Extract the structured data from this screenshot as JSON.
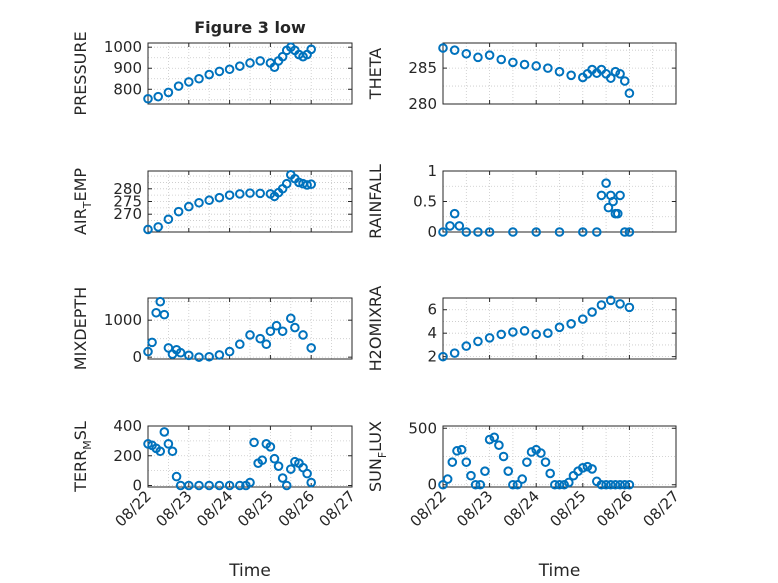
{
  "chart_data": [
    {
      "type": "scatter",
      "title": "Figure 3 low",
      "ylabel": "PRESSURE",
      "xlim": [
        "08/22",
        "08/27"
      ],
      "ylim": [
        730,
        1020
      ],
      "yticks": [
        800,
        900,
        1000
      ],
      "xticks": [
        "08/22",
        "08/23",
        "08/24",
        "08/25",
        "08/26",
        "08/27"
      ],
      "series": [
        {
          "x": [
            0,
            0.25,
            0.5,
            0.75,
            1,
            1.25,
            1.5,
            1.75,
            2,
            2.25,
            2.5,
            2.75,
            3,
            3.1,
            3.2,
            3.3,
            3.4,
            3.5,
            3.6,
            3.7,
            3.8,
            3.9,
            4.0
          ],
          "y": [
            755,
            765,
            785,
            815,
            835,
            850,
            870,
            885,
            895,
            910,
            925,
            935,
            925,
            905,
            935,
            955,
            985,
            1000,
            985,
            965,
            955,
            965,
            990
          ]
        }
      ]
    },
    {
      "type": "scatter",
      "ylabel": "THETA",
      "ylim": [
        280,
        288.5
      ],
      "yticks": [
        280,
        285
      ],
      "series": [
        {
          "x": [
            0,
            0.25,
            0.5,
            0.75,
            1,
            1.25,
            1.5,
            1.75,
            2,
            2.25,
            2.5,
            2.75,
            3,
            3.1,
            3.2,
            3.3,
            3.4,
            3.5,
            3.6,
            3.7,
            3.8,
            3.9,
            4.0
          ],
          "y": [
            287.8,
            287.5,
            287.0,
            286.5,
            286.8,
            286.2,
            285.8,
            285.5,
            285.3,
            285.0,
            284.5,
            284.0,
            283.7,
            284.2,
            284.8,
            284.3,
            284.8,
            284.2,
            283.6,
            284.5,
            284.2,
            283.2,
            281.5
          ]
        }
      ]
    },
    {
      "type": "scatter",
      "ylabel": "AIR_TEMP",
      "ylim": [
        263,
        287
      ],
      "yticks": [
        270,
        275,
        280
      ],
      "series": [
        {
          "x": [
            0,
            0.25,
            0.5,
            0.75,
            1,
            1.25,
            1.5,
            1.75,
            2,
            2.25,
            2.5,
            2.75,
            3,
            3.1,
            3.2,
            3.3,
            3.4,
            3.5,
            3.6,
            3.7,
            3.8,
            3.9,
            4.0
          ],
          "y": [
            264,
            265,
            268,
            271,
            273,
            274.5,
            275.5,
            276.5,
            277.5,
            278,
            278.3,
            278.2,
            278,
            277,
            278.5,
            280,
            282,
            285.5,
            284,
            282.5,
            282,
            281.5,
            281.8
          ]
        }
      ]
    },
    {
      "type": "scatter",
      "ylabel": "RAINFALL",
      "ylim": [
        0,
        1
      ],
      "yticks": [
        0,
        0.5,
        1
      ],
      "series": [
        {
          "x": [
            0,
            0.15,
            0.25,
            0.35,
            0.5,
            0.75,
            1,
            1.5,
            2,
            2.5,
            3,
            3.3,
            3.4,
            3.5,
            3.55,
            3.6,
            3.65,
            3.7,
            3.75,
            3.8,
            3.9,
            4.0
          ],
          "y": [
            0,
            0.1,
            0.3,
            0.1,
            0,
            0,
            0,
            0,
            0,
            0,
            0,
            0,
            0.6,
            0.8,
            0.4,
            0.6,
            0.5,
            0.3,
            0.3,
            0.6,
            0,
            0
          ]
        }
      ]
    },
    {
      "type": "scatter",
      "ylabel": "MIXDEPTH",
      "ylim": [
        -50,
        1600
      ],
      "yticks": [
        0,
        1000
      ],
      "series": [
        {
          "x": [
            0,
            0.1,
            0.2,
            0.3,
            0.4,
            0.5,
            0.6,
            0.7,
            0.8,
            1,
            1.25,
            1.5,
            1.75,
            2,
            2.25,
            2.5,
            2.75,
            2.9,
            3,
            3.15,
            3.3,
            3.5,
            3.6,
            3.8,
            4.0
          ],
          "y": [
            150,
            400,
            1200,
            1500,
            1150,
            250,
            80,
            200,
            120,
            50,
            0,
            10,
            60,
            150,
            350,
            600,
            500,
            350,
            700,
            850,
            700,
            1050,
            800,
            600,
            250
          ]
        }
      ]
    },
    {
      "type": "scatter",
      "ylabel": "H2OMIXRA",
      "ylim": [
        1.8,
        7
      ],
      "yticks": [
        2,
        4,
        6
      ],
      "series": [
        {
          "x": [
            0,
            0.25,
            0.5,
            0.75,
            1,
            1.25,
            1.5,
            1.75,
            2,
            2.25,
            2.5,
            2.75,
            3,
            3.2,
            3.4,
            3.6,
            3.8,
            4.0
          ],
          "y": [
            2,
            2.3,
            2.9,
            3.3,
            3.6,
            3.9,
            4.1,
            4.2,
            3.9,
            4.0,
            4.5,
            4.8,
            5.2,
            5.8,
            6.4,
            6.8,
            6.5,
            6.2
          ]
        }
      ]
    },
    {
      "type": "scatter",
      "ylabel": "TERR_MSL",
      "ylim": [
        -10,
        400
      ],
      "yticks": [
        0,
        200,
        400
      ],
      "series": [
        {
          "x": [
            0,
            0.1,
            0.2,
            0.3,
            0.4,
            0.5,
            0.6,
            0.7,
            0.8,
            1,
            1.25,
            1.5,
            1.75,
            2,
            2.25,
            2.4,
            2.5,
            2.6,
            2.7,
            2.8,
            2.9,
            3.0,
            3.1,
            3.2,
            3.3,
            3.4,
            3.5,
            3.6,
            3.7,
            3.8,
            3.9,
            4.0
          ],
          "y": [
            280,
            270,
            250,
            230,
            360,
            280,
            230,
            60,
            0,
            0,
            0,
            0,
            0,
            0,
            0,
            0,
            20,
            290,
            150,
            170,
            280,
            260,
            180,
            130,
            50,
            0,
            110,
            160,
            150,
            120,
            80,
            20
          ]
        }
      ]
    },
    {
      "type": "scatter",
      "ylabel": "SUN_FLUX",
      "ylim": [
        -20,
        520
      ],
      "yticks": [
        0,
        500
      ],
      "series": [
        {
          "x": [
            0,
            0.1,
            0.2,
            0.3,
            0.4,
            0.5,
            0.6,
            0.7,
            0.8,
            0.9,
            1.0,
            1.1,
            1.2,
            1.3,
            1.4,
            1.5,
            1.6,
            1.7,
            1.8,
            1.9,
            2.0,
            2.1,
            2.2,
            2.3,
            2.4,
            2.5,
            2.6,
            2.7,
            2.8,
            2.9,
            3.0,
            3.1,
            3.2,
            3.3,
            3.4,
            3.5,
            3.6,
            3.7,
            3.8,
            3.9,
            4.0
          ],
          "y": [
            0,
            50,
            200,
            300,
            310,
            200,
            80,
            0,
            0,
            120,
            400,
            420,
            350,
            250,
            120,
            0,
            0,
            50,
            200,
            290,
            310,
            280,
            200,
            100,
            0,
            0,
            0,
            20,
            80,
            120,
            150,
            160,
            140,
            30,
            0,
            0,
            0,
            0,
            0,
            0,
            0
          ]
        }
      ]
    }
  ],
  "xlabel": "Time"
}
